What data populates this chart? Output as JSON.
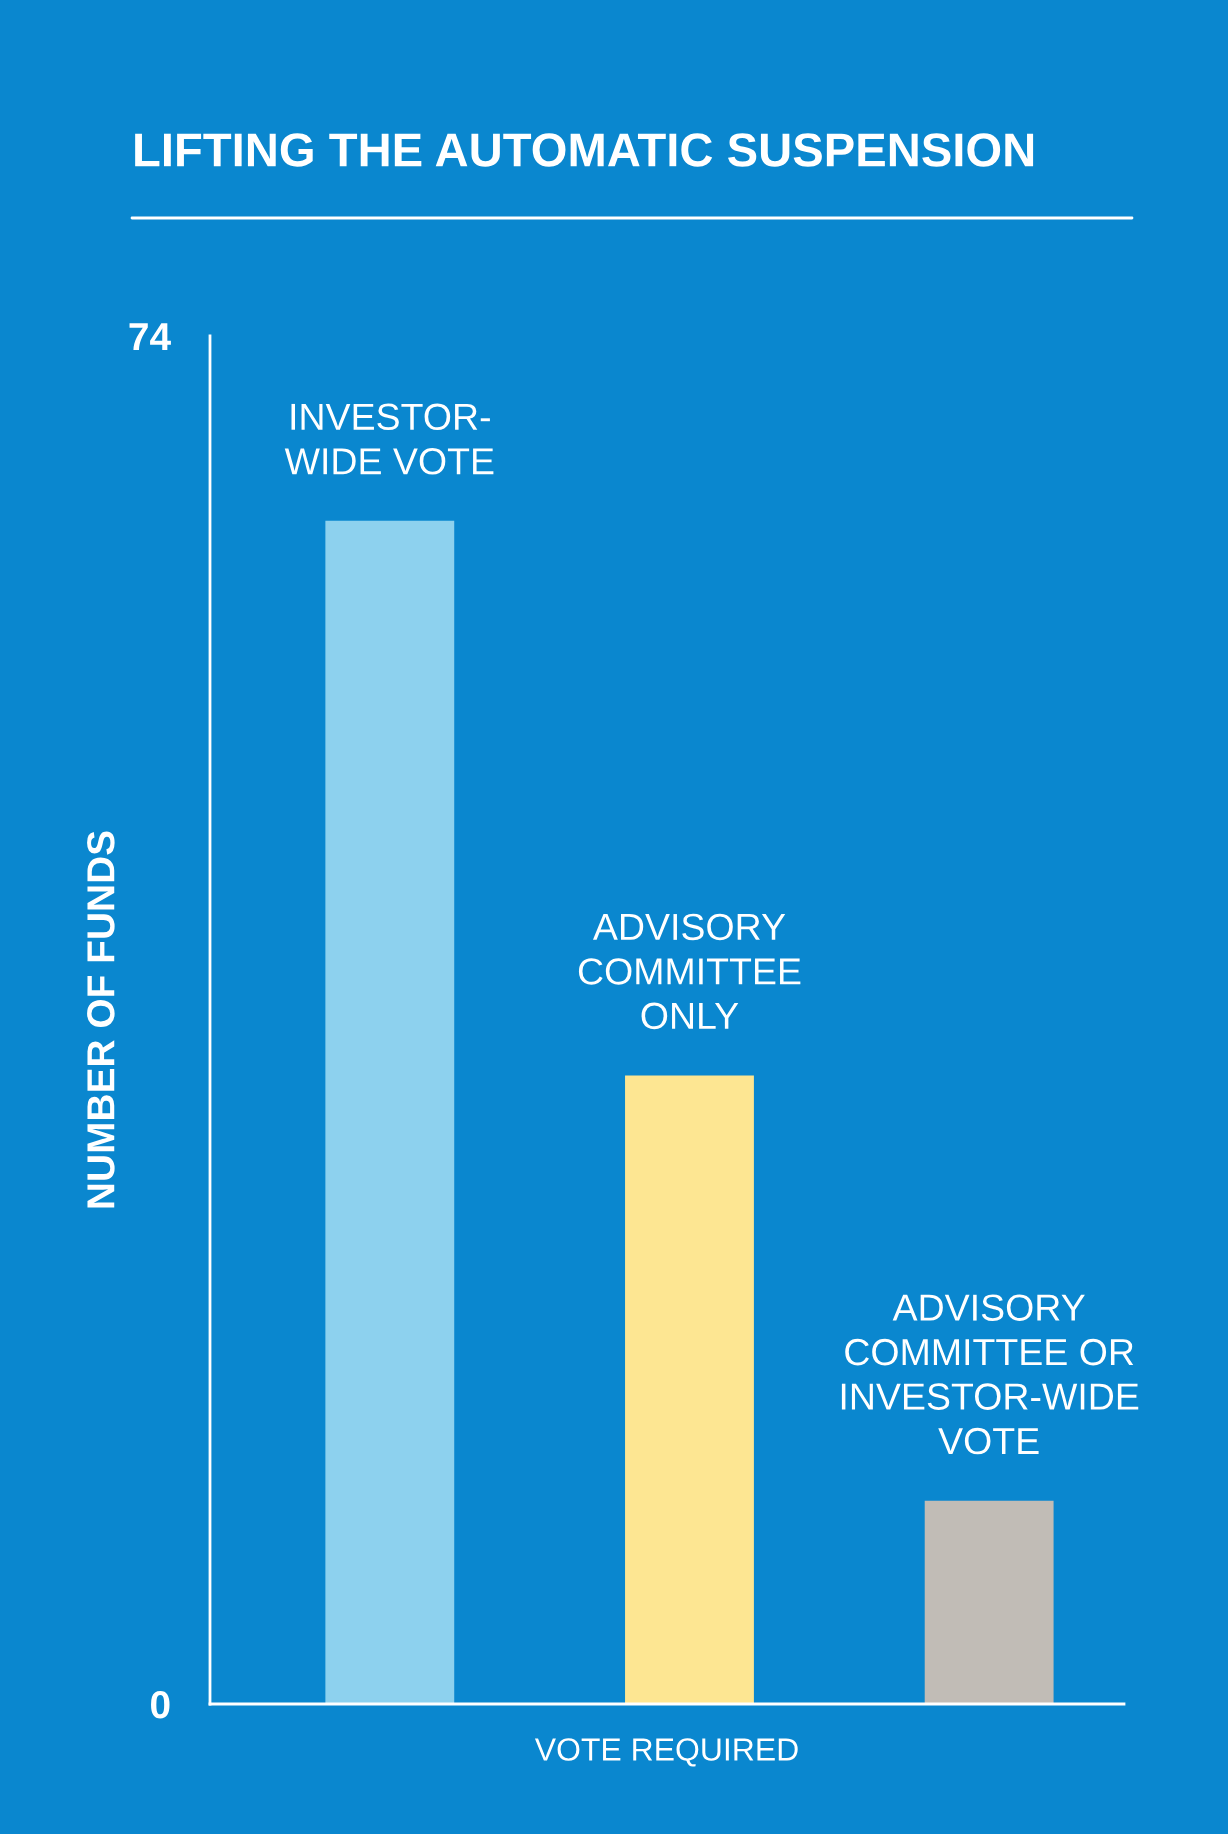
{
  "chart_data": {
    "type": "bar",
    "title": "LIFTING THE AUTOMATIC SUSPENSION",
    "xlabel": "VOTE REQUIRED",
    "ylabel": "NUMBER OF FUNDS",
    "categories": [
      "INVESTOR-\nWIDE VOTE",
      "ADVISORY\nCOMMITTEE\nONLY",
      "ADVISORY\nCOMMITTEE OR\nINVESTOR-WIDE\nVOTE"
    ],
    "values": [
      64,
      34,
      11
    ],
    "colors": [
      "#8dd1ee",
      "#fde692",
      "#c1bcb6"
    ],
    "ylim": [
      0,
      74
    ],
    "yticks": [
      0,
      74
    ],
    "grid": false,
    "legend": false
  }
}
